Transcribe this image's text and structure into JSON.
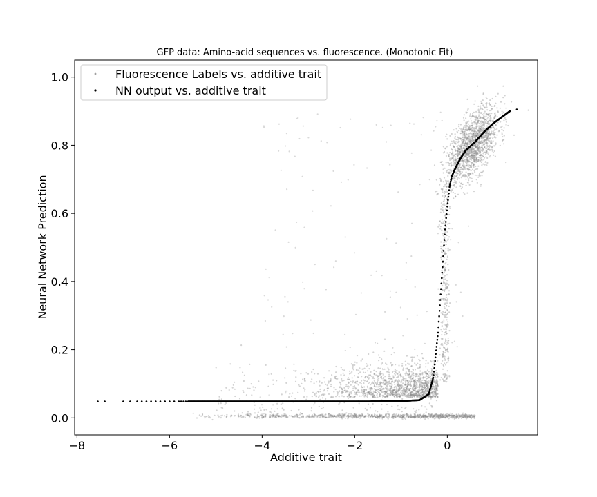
{
  "chart_data": {
    "type": "scatter",
    "title": "GFP data: Amino-acid sequences vs. fluorescence. (Monotonic Fit)",
    "xlabel": "Additive trait",
    "ylabel": "Neural Network Prediction",
    "xlim": [
      -8.05,
      1.95
    ],
    "ylim": [
      -0.05,
      1.05
    ],
    "xticks": [
      -8,
      -6,
      -4,
      -2,
      0
    ],
    "xtick_labels": [
      "−8",
      "−6",
      "−4",
      "−2",
      "0"
    ],
    "yticks": [
      0.0,
      0.2,
      0.4,
      0.6,
      0.8,
      1.0
    ],
    "ytick_labels": [
      "0.0",
      "0.2",
      "0.4",
      "0.6",
      "0.8",
      "1.0"
    ],
    "grid": false,
    "legend": {
      "placement": "upper-left",
      "entries": [
        {
          "label": "Fluorescence Labels vs. additive trait",
          "marker": "dot",
          "color": "#a0a0a0"
        },
        {
          "label": "NN output vs. additive trait",
          "marker": "dot",
          "color": "#000000"
        }
      ]
    },
    "series": [
      {
        "name": "Fluorescence Labels vs. additive trait",
        "color": "#808080",
        "opacity": 0.35,
        "description_points": [
          [
            -7.5,
            0.005
          ],
          [
            -7.0,
            0.005
          ],
          [
            -6.5,
            0.005
          ],
          [
            -6.0,
            0.005
          ],
          [
            -5.5,
            0.005
          ],
          [
            -5.0,
            0.005
          ],
          [
            -4.5,
            0.005
          ],
          [
            -4.0,
            0.005
          ],
          [
            -3.5,
            0.005
          ],
          [
            -3.0,
            0.005
          ],
          [
            -2.5,
            0.005
          ],
          [
            -2.0,
            0.005
          ],
          [
            -1.5,
            0.005
          ],
          [
            -1.0,
            0.005
          ],
          [
            -0.5,
            0.005
          ],
          [
            0.0,
            0.005
          ],
          [
            0.5,
            0.005
          ],
          [
            1.0,
            0.005
          ]
        ]
      },
      {
        "name": "NN output vs. additive trait",
        "color": "#000000",
        "points": [
          [
            -7.55,
            0.048
          ],
          [
            -7.4,
            0.048
          ],
          [
            -7.0,
            0.048
          ],
          [
            -6.8,
            0.048
          ],
          [
            -6.6,
            0.048
          ],
          [
            -6.4,
            0.048
          ],
          [
            -6.2,
            0.048
          ],
          [
            -6.0,
            0.048
          ],
          [
            -5.8,
            0.048
          ],
          [
            -5.6,
            0.048
          ],
          [
            -5.4,
            0.048
          ],
          [
            -5.0,
            0.048
          ],
          [
            -4.0,
            0.048
          ],
          [
            -3.0,
            0.048
          ],
          [
            -2.0,
            0.048
          ],
          [
            -1.0,
            0.049
          ],
          [
            -0.6,
            0.052
          ],
          [
            -0.4,
            0.07
          ],
          [
            -0.3,
            0.12
          ],
          [
            -0.2,
            0.25
          ],
          [
            -0.1,
            0.45
          ],
          [
            -0.05,
            0.55
          ],
          [
            0.0,
            0.62
          ],
          [
            0.05,
            0.68
          ],
          [
            0.1,
            0.71
          ],
          [
            0.2,
            0.74
          ],
          [
            0.3,
            0.765
          ],
          [
            0.4,
            0.785
          ],
          [
            0.6,
            0.81
          ],
          [
            0.8,
            0.84
          ],
          [
            1.0,
            0.865
          ],
          [
            1.2,
            0.885
          ],
          [
            1.35,
            0.9
          ],
          [
            1.5,
            0.905
          ]
        ]
      }
    ]
  }
}
